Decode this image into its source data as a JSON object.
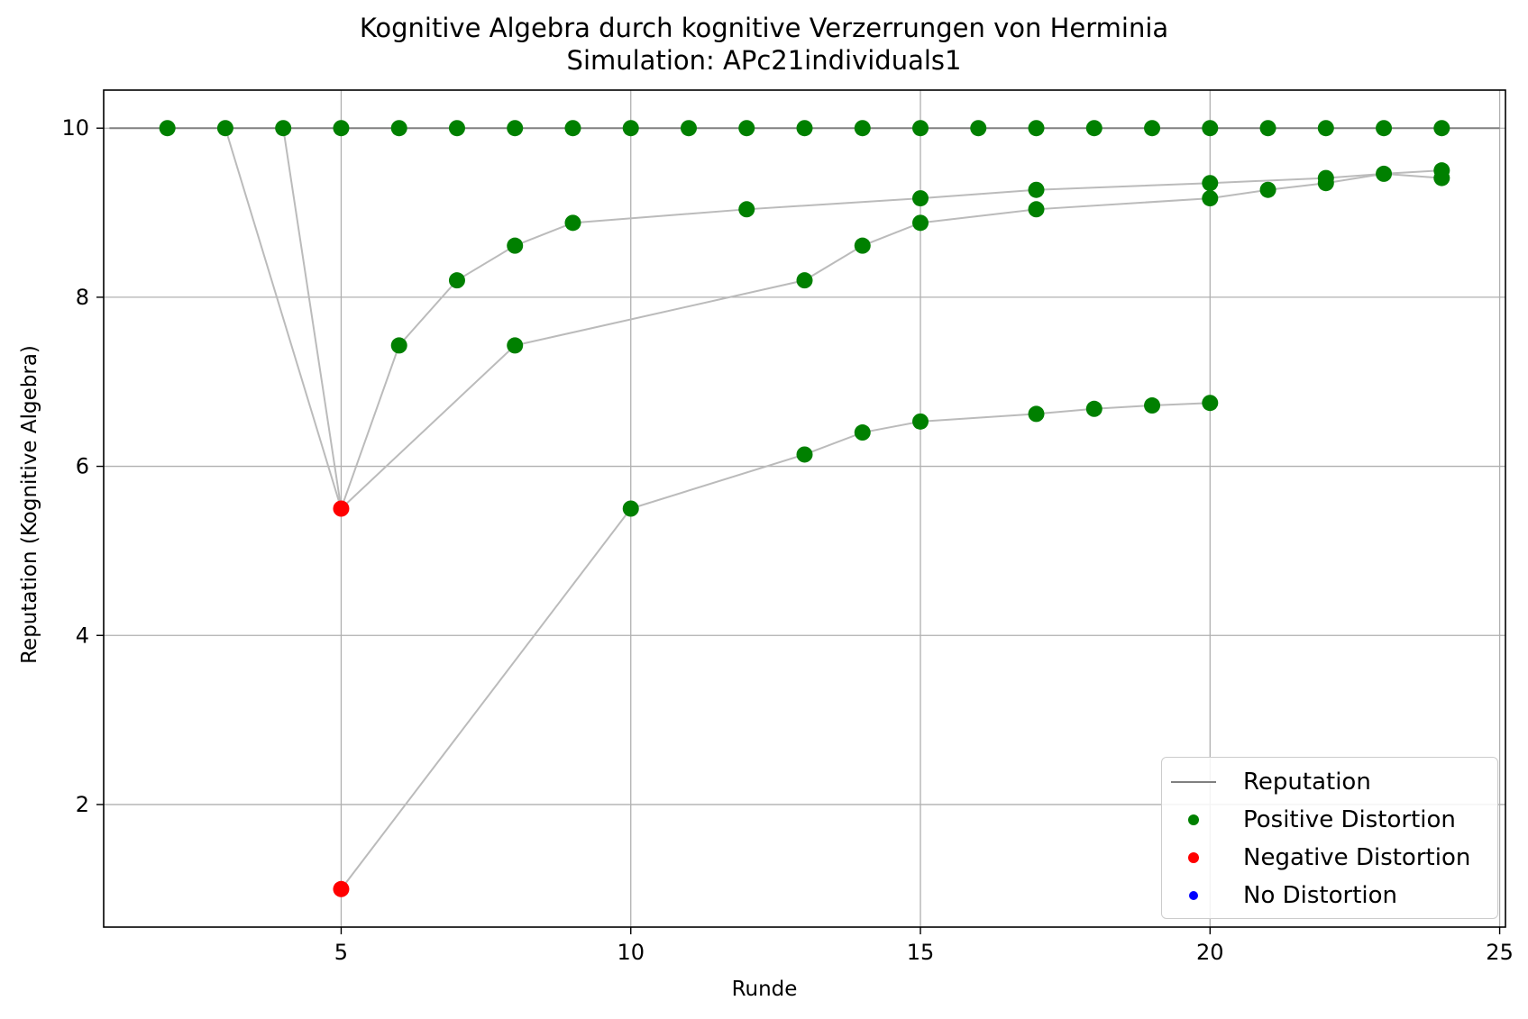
{
  "chart_data": {
    "type": "scatter",
    "title": "Kognitive Algebra durch kognitive Verzerrungen von Herminia",
    "subtitle": "Simulation: APc21individuals1",
    "xlabel": "Runde",
    "ylabel": "Reputation (Kognitive Algebra)",
    "xlim": [
      0.9,
      25.1
    ],
    "ylim": [
      0.55,
      10.45
    ],
    "xticks": [
      5,
      10,
      15,
      20,
      25
    ],
    "yticks": [
      2,
      4,
      6,
      8,
      10
    ],
    "grid": true,
    "legend_position": "lower-right",
    "colors": {
      "reputation_line": "#808080",
      "positive": "#008000",
      "negative": "#ff0000",
      "none": "#0000ff",
      "connector": "#bbbbbb"
    },
    "legend": [
      {
        "label": "Reputation",
        "kind": "line",
        "color": "#808080"
      },
      {
        "label": "Positive Distortion",
        "kind": "dot",
        "color": "#008000"
      },
      {
        "label": "Negative Distortion",
        "kind": "dot",
        "color": "#ff0000"
      },
      {
        "label": "No Distortion",
        "kind": "dot",
        "color": "#0000ff"
      }
    ],
    "reputation_line": {
      "y": 10,
      "x_range": [
        1.0,
        25.0
      ]
    },
    "trajectories": [
      {
        "points": [
          [
            3,
            10
          ],
          [
            5,
            5.5
          ],
          [
            6,
            7.43
          ],
          [
            7,
            8.2
          ],
          [
            8,
            8.61
          ],
          [
            9,
            8.88
          ],
          [
            12,
            9.04
          ],
          [
            15,
            9.17
          ],
          [
            17,
            9.27
          ],
          [
            20,
            9.35
          ],
          [
            22,
            9.41
          ],
          [
            23,
            9.46
          ],
          [
            24,
            9.5
          ]
        ]
      },
      {
        "points": [
          [
            4,
            10
          ],
          [
            5,
            5.5
          ],
          [
            8,
            7.43
          ],
          [
            13,
            8.2
          ],
          [
            14,
            8.61
          ],
          [
            15,
            8.88
          ],
          [
            17,
            9.04
          ],
          [
            20,
            9.17
          ],
          [
            21,
            9.27
          ],
          [
            22,
            9.35
          ],
          [
            23,
            9.46
          ],
          [
            24,
            9.41
          ]
        ]
      },
      {
        "points": [
          [
            5,
            1.0
          ],
          [
            10,
            5.5
          ],
          [
            13,
            6.14
          ],
          [
            14,
            6.4
          ],
          [
            15,
            6.53
          ],
          [
            17,
            6.62
          ],
          [
            18,
            6.68
          ],
          [
            19,
            6.72
          ],
          [
            20,
            6.75
          ]
        ]
      }
    ],
    "series": [
      {
        "name": "Positive Distortion",
        "color": "#008000",
        "points": [
          [
            2,
            10
          ],
          [
            3,
            10
          ],
          [
            4,
            10
          ],
          [
            5,
            10
          ],
          [
            6,
            10
          ],
          [
            7,
            10
          ],
          [
            8,
            10
          ],
          [
            9,
            10
          ],
          [
            10,
            10
          ],
          [
            11,
            10
          ],
          [
            12,
            10
          ],
          [
            13,
            10
          ],
          [
            14,
            10
          ],
          [
            15,
            10
          ],
          [
            16,
            10
          ],
          [
            17,
            10
          ],
          [
            18,
            10
          ],
          [
            19,
            10
          ],
          [
            20,
            10
          ],
          [
            21,
            10
          ],
          [
            22,
            10
          ],
          [
            23,
            10
          ],
          [
            24,
            10
          ],
          [
            6,
            7.43
          ],
          [
            7,
            8.2
          ],
          [
            8,
            8.61
          ],
          [
            9,
            8.88
          ],
          [
            12,
            9.04
          ],
          [
            15,
            9.17
          ],
          [
            17,
            9.27
          ],
          [
            20,
            9.35
          ],
          [
            22,
            9.41
          ],
          [
            23,
            9.46
          ],
          [
            24,
            9.5
          ],
          [
            8,
            7.43
          ],
          [
            13,
            8.2
          ],
          [
            14,
            8.61
          ],
          [
            15,
            8.88
          ],
          [
            17,
            9.04
          ],
          [
            20,
            9.17
          ],
          [
            21,
            9.27
          ],
          [
            22,
            9.35
          ],
          [
            24,
            9.41
          ],
          [
            10,
            5.5
          ],
          [
            13,
            6.14
          ],
          [
            14,
            6.4
          ],
          [
            15,
            6.53
          ],
          [
            17,
            6.62
          ],
          [
            18,
            6.68
          ],
          [
            19,
            6.72
          ],
          [
            20,
            6.75
          ]
        ]
      },
      {
        "name": "Negative Distortion",
        "color": "#ff0000",
        "points": [
          [
            5,
            5.5
          ],
          [
            5,
            1.0
          ]
        ]
      },
      {
        "name": "No Distortion",
        "color": "#0000ff",
        "points": []
      }
    ]
  }
}
